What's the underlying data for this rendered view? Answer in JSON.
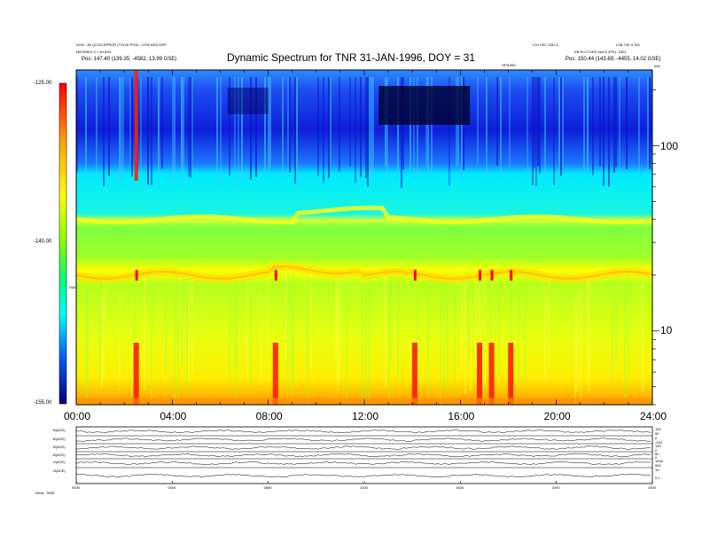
{
  "header": {
    "title": "Dynamic Spectrum for TNR 31-JAN-1996, DOY = 31",
    "info_left_1": "2020 - 80 QCOS RPROP (TOI 80 POS): -0790 ARS DRP",
    "info_left_2": "MEORIES 3 = 84 B33",
    "info_left_pos": "Pos:   147.40 (139.35, -4582, 13.99 GSE)",
    "info_right_1": "1.10 VEC 331CC",
    "info_right_1b": "LSB 700 H 331",
    "info_right_2": "EB-PLCTURS VACS 2P31, 2301",
    "info_right_pos": "Pos:   150.44 (143.69, -4455, 14.02 GSE)",
    "info_right_3": "GPIDMS",
    "khz_label": "kHz"
  },
  "chart_data": {
    "type": "heatmap",
    "title": "Dynamic Spectrum for TNR 31-JAN-1996, DOY = 31",
    "x_tick_labels": [
      "00:00",
      "04:00",
      "08:00",
      "12:00",
      "16:00",
      "20:00",
      "24:00"
    ],
    "x_range_hours": [
      0,
      24
    ],
    "y_axis_right": {
      "scale": "log",
      "range_khz": [
        4,
        256
      ],
      "tick_labels": [
        "100",
        "10"
      ],
      "tick_values_khz": [
        100,
        10
      ]
    },
    "colorbar": {
      "tick_labels": [
        "-125.00",
        "-140.00",
        "-155.00"
      ],
      "tick_values": [
        -125,
        -140,
        -155
      ],
      "label": "TNR",
      "colors": [
        "#ff0000",
        "#ffff00",
        "#00ff00",
        "#00ffff",
        "#0000ff",
        "#000080"
      ]
    },
    "features": {
      "background_level_khz": 40,
      "plasma_line_khz": 20,
      "bursts_hours": [
        2.5,
        8.3,
        14.1,
        16.8,
        17.3,
        18.1
      ]
    },
    "panels": [
      {
        "label": "B(ACE)",
        "right_ticks": [
          "100",
          "50"
        ]
      },
      {
        "label": "B(ACE)",
        "right_ticks": [
          "0",
          "-100"
        ]
      },
      {
        "label": "B(ACE)",
        "right_ticks": [
          "100",
          "0"
        ]
      },
      {
        "label": "B(ACE)",
        "right_ticks": [
          "60",
          "0"
        ]
      },
      {
        "label": "V(ACE)",
        "right_ticks": [
          "1000",
          "500"
        ]
      },
      {
        "label": "N(ACE)",
        "right_ticks": [
          "10",
          "0.1"
        ]
      }
    ],
    "bottom_x_tick_labels": [
      "0000",
      "0400",
      "0800",
      "1200",
      "1600",
      "2000",
      "2400"
    ]
  },
  "footer": {
    "label": "Wind..  SWE"
  }
}
